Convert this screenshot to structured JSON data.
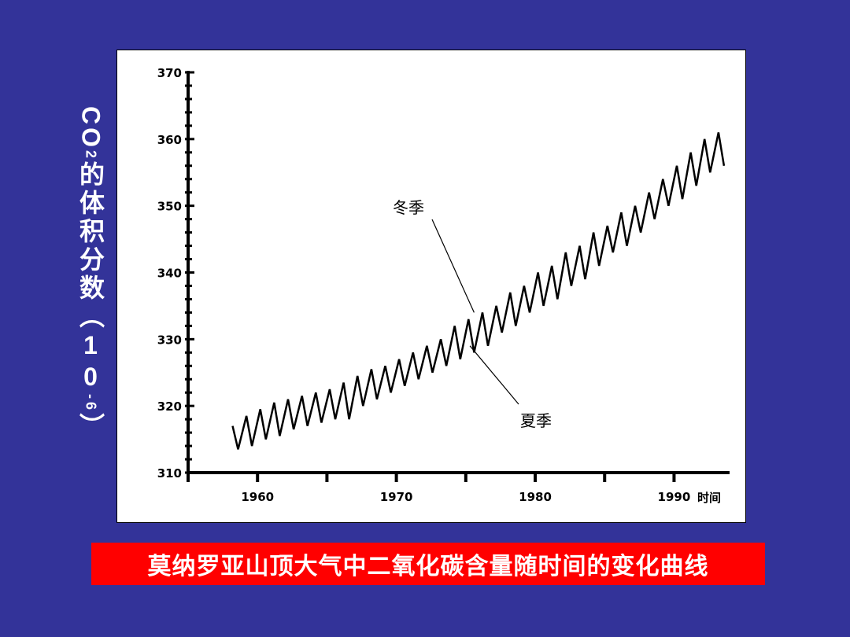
{
  "chart_data": {
    "type": "line",
    "ylabel_parts": [
      "CO",
      "2",
      "的体积分数（10",
      "-6",
      "）"
    ],
    "xlabel": "时间",
    "ylim": [
      310,
      370
    ],
    "xlim": [
      1955,
      1994
    ],
    "yticks": [
      "310",
      "320",
      "330",
      "340",
      "350",
      "360",
      "370"
    ],
    "xticks": [
      "1960",
      "1970",
      "1980",
      "1990"
    ],
    "annotations": [
      {
        "text": "冬季",
        "points_to": [
          1975.6,
          334
        ]
      },
      {
        "text": "夏季",
        "points_to": [
          1975.3,
          329
        ]
      }
    ],
    "series": [
      {
        "x": [
          1958.2,
          1958.6,
          1959.2,
          1959.6,
          1960.2,
          1960.6,
          1961.2,
          1961.6,
          1962.2,
          1962.6,
          1963.2,
          1963.6,
          1964.2,
          1964.6,
          1965.2,
          1965.6,
          1966.2,
          1966.6,
          1967.2,
          1967.6,
          1968.2,
          1968.6,
          1969.2,
          1969.6,
          1970.2,
          1970.6,
          1971.2,
          1971.6,
          1972.2,
          1972.6,
          1973.2,
          1973.6,
          1974.2,
          1974.6,
          1975.2,
          1975.6,
          1976.2,
          1976.6,
          1977.2,
          1977.6,
          1978.2,
          1978.6,
          1979.2,
          1979.6,
          1980.2,
          1980.6,
          1981.2,
          1981.6,
          1982.2,
          1982.6,
          1983.2,
          1983.6,
          1984.2,
          1984.6,
          1985.2,
          1985.6,
          1986.2,
          1986.6,
          1987.2,
          1987.6,
          1988.2,
          1988.6,
          1989.2,
          1989.6,
          1990.2,
          1990.6,
          1991.2,
          1991.6,
          1992.2,
          1992.6,
          1993.2,
          1993.6
        ],
        "values": [
          317,
          313.5,
          318.5,
          314,
          319.5,
          315,
          320.5,
          315.5,
          321,
          316.5,
          321.5,
          317,
          322,
          317.5,
          322.5,
          318,
          323.5,
          318,
          324.5,
          320,
          325.5,
          321,
          326,
          322,
          327,
          323,
          328,
          324,
          329,
          325,
          330,
          326,
          332,
          327,
          333,
          328,
          334,
          329,
          335,
          331,
          337,
          332,
          338,
          334,
          340,
          335,
          341,
          336,
          343,
          338,
          344,
          339,
          346,
          341,
          347,
          343,
          349,
          344,
          350,
          346,
          352,
          348,
          354,
          350,
          356,
          351,
          358,
          353,
          360,
          355,
          361,
          356
        ]
      }
    ]
  },
  "caption": "莫纳罗亚山顶大气中二氧化碳含量随时间的变化曲线"
}
